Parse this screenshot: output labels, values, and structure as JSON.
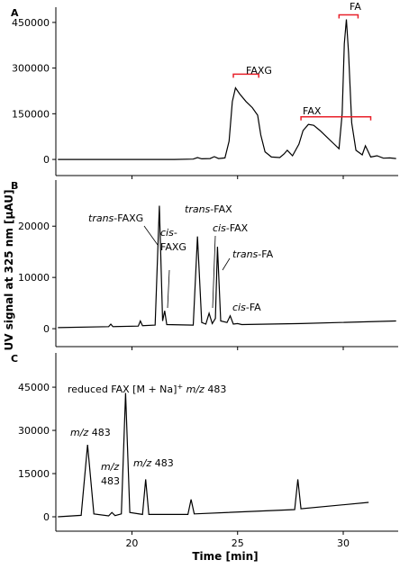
{
  "xlabel": "Time [min]",
  "ylabel": "UV signal at 325 nm [µAU]",
  "chart_data": [
    {
      "type": "line",
      "panel_label": "A",
      "xlim": [
        16.4,
        32.6
      ],
      "xticks": [
        20,
        25,
        30
      ],
      "show_xtick_labels": false,
      "ylim": [
        -53000,
        500000
      ],
      "yticks": [
        0,
        150000,
        300000,
        450000
      ],
      "x": [
        16.5,
        22,
        22.9,
        23.1,
        23.3,
        23.7,
        23.9,
        24.1,
        24.4,
        24.6,
        24.75,
        24.9,
        25.1,
        25.4,
        25.7,
        25.95,
        26.1,
        26.3,
        26.6,
        27,
        27.2,
        27.35,
        27.6,
        27.9,
        28.1,
        28.35,
        28.6,
        28.9,
        29.2,
        29.5,
        29.8,
        29.95,
        30.05,
        30.15,
        30.25,
        30.4,
        30.6,
        30.9,
        31.05,
        31.15,
        31.3,
        31.6,
        31.9,
        32.2,
        32.5
      ],
      "series": [
        {
          "color": "#000000",
          "values": [
            0,
            0,
            1000,
            6000,
            2000,
            3000,
            9000,
            3000,
            5000,
            60000,
            190000,
            235000,
            215000,
            190000,
            170000,
            145000,
            80000,
            25000,
            8000,
            6000,
            18000,
            30000,
            12000,
            50000,
            95000,
            115000,
            112000,
            95000,
            75000,
            55000,
            35000,
            150000,
            380000,
            460000,
            350000,
            120000,
            30000,
            15000,
            45000,
            30000,
            8000,
            12000,
            4000,
            5000,
            3000
          ]
        }
      ],
      "annotations": [
        {
          "lines": [
            [
              {
                "text": "FAXG"
              }
            ]
          ],
          "range": [
            24.8,
            26.0
          ],
          "y": 280000,
          "color": "#e8202a"
        },
        {
          "lines": [
            [
              {
                "text": "FAX"
              }
            ]
          ],
          "range": [
            28.0,
            31.3
          ],
          "y": 140000,
          "color": "#e8202a"
        },
        {
          "lines": [
            [
              {
                "text": "FA"
              }
            ]
          ],
          "range": [
            29.8,
            30.7
          ],
          "y": 475000,
          "color": "#e8202a"
        }
      ]
    },
    {
      "type": "line",
      "panel_label": "B",
      "xlim": [
        16.4,
        32.6
      ],
      "xticks": [
        20,
        25,
        30
      ],
      "show_xtick_labels": false,
      "ylim": [
        -3500,
        29000
      ],
      "yticks": [
        0,
        10000,
        20000
      ],
      "x": [
        16.5,
        18.9,
        19.0,
        19.1,
        20.3,
        20.4,
        20.5,
        21.1,
        21.3,
        21.45,
        21.55,
        21.65,
        22.9,
        23.1,
        23.3,
        23.5,
        23.65,
        23.8,
        23.95,
        24.05,
        24.2,
        24.5,
        24.65,
        24.8,
        25.0,
        25.2,
        28,
        32.5
      ],
      "series": [
        {
          "color": "#000000",
          "values": [
            200,
            400,
            900,
            400,
            500,
            1500,
            600,
            700,
            24000,
            1500,
            3500,
            800,
            700,
            18000,
            1200,
            900,
            3000,
            1000,
            2000,
            16000,
            1500,
            1200,
            2500,
            900,
            1000,
            800,
            1000,
            1500
          ]
        }
      ],
      "annotations": [
        {
          "lines": [
            [
              {
                "text": "trans",
                "style": "italic"
              },
              {
                "text": "-FAXG"
              }
            ]
          ]
        },
        {
          "lines": [
            [
              {
                "text": "cis",
                "style": "italic"
              },
              {
                "text": "-"
              }
            ],
            [
              {
                "text": "FAXG"
              }
            ]
          ]
        },
        {
          "lines": [
            [
              {
                "text": "trans",
                "style": "italic"
              },
              {
                "text": "-FAX"
              }
            ]
          ]
        },
        {
          "lines": [
            [
              {
                "text": "cis",
                "style": "italic"
              },
              {
                "text": "-FAX"
              }
            ]
          ]
        },
        {
          "lines": [
            [
              {
                "text": "trans",
                "style": "italic"
              },
              {
                "text": "-FA"
              }
            ]
          ]
        },
        {
          "lines": [
            [
              {
                "text": "cis",
                "style": "italic"
              },
              {
                "text": "-FA"
              }
            ]
          ]
        }
      ]
    },
    {
      "type": "line",
      "panel_label": "C",
      "xlim": [
        16.4,
        32.6
      ],
      "xticks": [
        20,
        25,
        30
      ],
      "show_xtick_labels": true,
      "ylim": [
        -5000,
        56900
      ],
      "yticks": [
        0,
        15000,
        30000,
        45000
      ],
      "x": [
        16.5,
        17.6,
        17.9,
        18.2,
        18.9,
        19.05,
        19.2,
        19.5,
        19.7,
        19.9,
        20.5,
        20.65,
        20.8,
        22.65,
        22.8,
        22.95,
        27.7,
        27.85,
        28.0,
        31.2
      ],
      "series": [
        {
          "color": "#000000",
          "values": [
            0,
            500,
            25000,
            1000,
            300,
            1500,
            400,
            1000,
            43000,
            1500,
            800,
            13000,
            800,
            800,
            6000,
            1000,
            2500,
            13000,
            2800,
            5000
          ]
        }
      ],
      "annotations": [
        {
          "lines": [
            [
              {
                "text": "reduced FAX [M + Na]"
              },
              {
                "text": "+",
                "style": "sup"
              },
              {
                "text": " "
              },
              {
                "text": "m/z",
                "style": "italic"
              },
              {
                "text": " 483"
              }
            ]
          ]
        },
        {
          "lines": [
            [
              {
                "text": "m/z",
                "style": "italic"
              },
              {
                "text": " 483"
              }
            ]
          ]
        },
        {
          "lines": [
            [
              {
                "text": "m/z",
                "style": "italic"
              }
            ],
            [
              {
                "text": "483"
              }
            ]
          ]
        },
        {
          "lines": [
            [
              {
                "text": "m/z",
                "style": "italic"
              },
              {
                "text": " 483"
              }
            ]
          ]
        }
      ]
    }
  ]
}
